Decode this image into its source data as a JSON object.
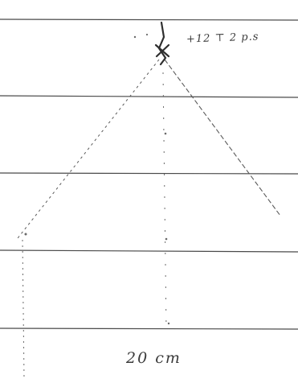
{
  "labels": {
    "top_annotation": "+12 ⊤ 2 p.s",
    "bottom_annotation": "20 cm"
  },
  "colors": {
    "ruled_line": "#4a4a4a",
    "pencil": "#6a6a6a",
    "ink": "#2e2e2e",
    "paper": "#ffffff"
  }
}
